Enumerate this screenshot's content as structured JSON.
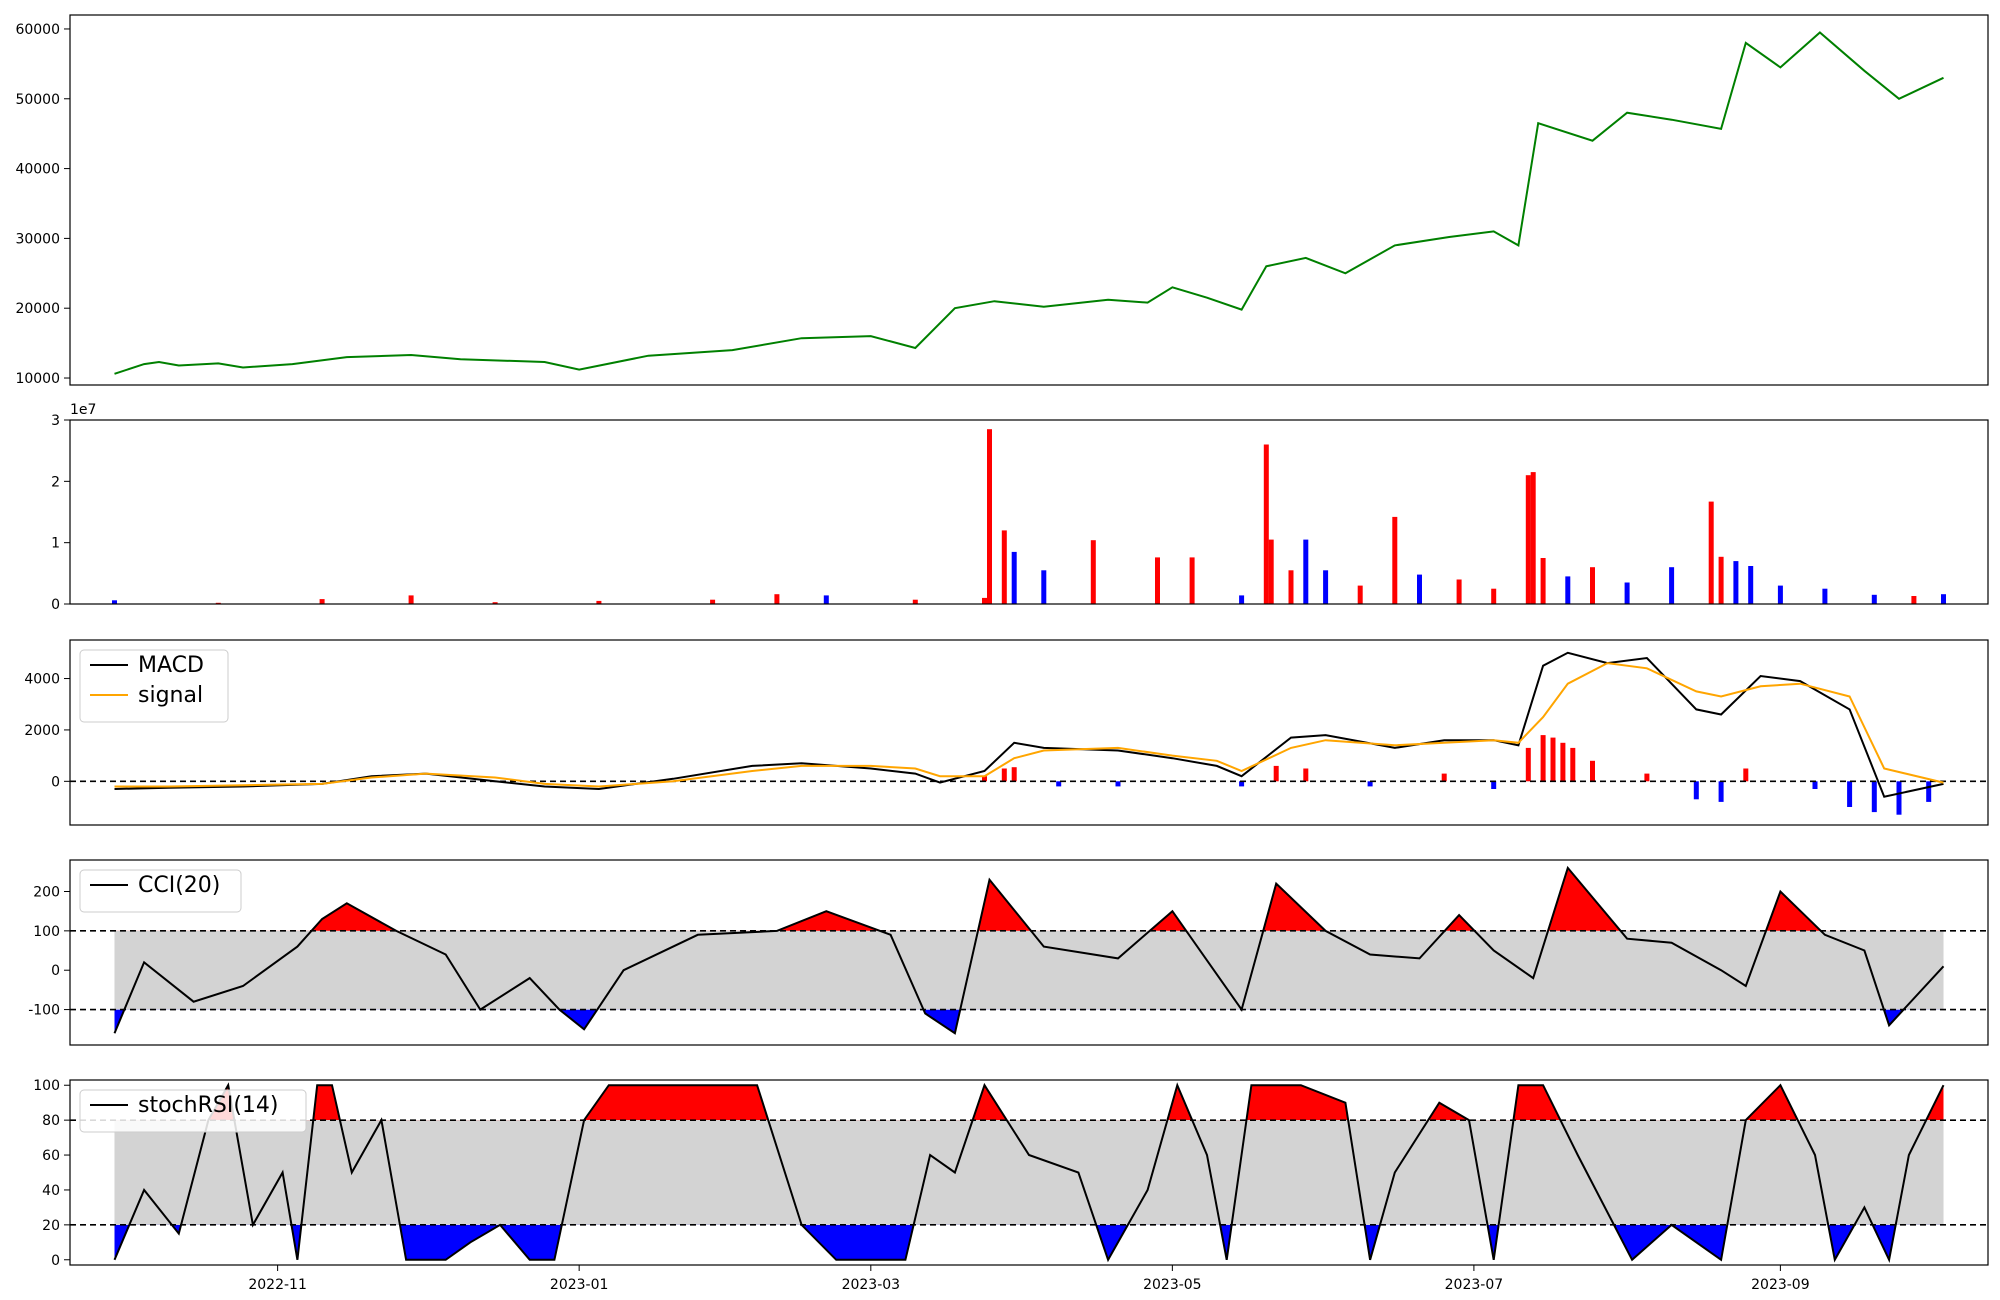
{
  "chart_data": [
    {
      "type": "line",
      "panel": "price",
      "x": [
        "2022-09-29",
        "2022-10-05",
        "2022-10-08",
        "2022-10-12",
        "2022-10-20",
        "2022-10-25",
        "2022-11-04",
        "2022-11-15",
        "2022-11-28",
        "2022-12-08",
        "2022-12-25",
        "2023-01-01",
        "2023-01-15",
        "2023-02-01",
        "2023-02-15",
        "2023-03-01",
        "2023-03-10",
        "2023-03-18",
        "2023-03-26",
        "2023-04-05",
        "2023-04-18",
        "2023-04-26",
        "2023-05-01",
        "2023-05-08",
        "2023-05-15",
        "2023-05-20",
        "2023-05-28",
        "2023-06-05",
        "2023-06-15",
        "2023-06-26",
        "2023-07-05",
        "2023-07-10",
        "2023-07-14",
        "2023-07-25",
        "2023-08-01",
        "2023-08-10",
        "2023-08-20",
        "2023-08-25",
        "2023-09-01",
        "2023-09-09",
        "2023-09-18",
        "2023-09-25",
        "2023-10-04"
      ],
      "values": [
        10600,
        12000,
        12300,
        11800,
        12100,
        11500,
        12000,
        13000,
        13300,
        12700,
        12300,
        11200,
        13200,
        14000,
        15700,
        16000,
        14300,
        20000,
        21000,
        20200,
        21200,
        20800,
        23000,
        21500,
        19800,
        26000,
        27200,
        25000,
        29000,
        30200,
        31000,
        29000,
        46500,
        44000,
        48000,
        47000,
        45700,
        58000,
        54500,
        59500,
        54000,
        50000,
        53000
      ],
      "ylim": [
        9000,
        62000
      ],
      "yticks": [
        10000,
        20000,
        30000,
        40000,
        50000,
        60000
      ],
      "color": "#008000",
      "grid": false
    },
    {
      "type": "bar",
      "panel": "volume",
      "x": [
        "2022-09-29",
        "2022-10-20",
        "2022-11-10",
        "2022-11-28",
        "2022-12-15",
        "2023-01-05",
        "2023-01-28",
        "2023-02-10",
        "2023-02-20",
        "2023-03-10",
        "2023-03-24",
        "2023-03-25",
        "2023-03-28",
        "2023-03-30",
        "2023-04-05",
        "2023-04-15",
        "2023-04-28",
        "2023-05-05",
        "2023-05-15",
        "2023-05-20",
        "2023-05-21",
        "2023-05-25",
        "2023-05-28",
        "2023-06-01",
        "2023-06-08",
        "2023-06-15",
        "2023-06-20",
        "2023-06-28",
        "2023-07-05",
        "2023-07-12",
        "2023-07-13",
        "2023-07-15",
        "2023-07-20",
        "2023-07-25",
        "2023-08-01",
        "2023-08-10",
        "2023-08-18",
        "2023-08-20",
        "2023-08-23",
        "2023-08-26",
        "2023-09-01",
        "2023-09-10",
        "2023-09-20",
        "2023-09-28",
        "2023-10-04"
      ],
      "values": [
        600000,
        200000,
        800000,
        1400000,
        300000,
        500000,
        700000,
        1600000,
        1400000,
        700000,
        1000000,
        28500000,
        12000000,
        8500000,
        5500000,
        10400000,
        7600000,
        7600000,
        1400000,
        26000000,
        10500000,
        5500000,
        10500000,
        5500000,
        3000000,
        14200000,
        4800000,
        4000000,
        2500000,
        21000000,
        21500000,
        7500000,
        4500000,
        6000000,
        3500000,
        6000000,
        16700000,
        7700000,
        7000000,
        6200000,
        3000000,
        2500000,
        1500000,
        1300000,
        1600000
      ],
      "colors": [
        "blue",
        "red",
        "red",
        "red",
        "red",
        "red",
        "red",
        "red",
        "blue",
        "red",
        "red",
        "red",
        "red",
        "blue",
        "blue",
        "red",
        "red",
        "red",
        "blue",
        "red",
        "red",
        "red",
        "blue",
        "blue",
        "red",
        "red",
        "blue",
        "red",
        "red",
        "red",
        "red",
        "red",
        "blue",
        "red",
        "blue",
        "blue",
        "red",
        "red",
        "blue",
        "blue",
        "blue",
        "blue",
        "blue",
        "red",
        "blue"
      ],
      "ylim": [
        0,
        30000000
      ],
      "yticks": [
        0,
        1,
        2,
        3
      ],
      "offset_label": "1e7",
      "grid": false
    },
    {
      "type": "line",
      "panel": "macd",
      "series": [
        {
          "name": "MACD",
          "color": "#000000",
          "x": [
            "2022-09-29",
            "2022-10-10",
            "2022-10-25",
            "2022-11-10",
            "2022-11-20",
            "2022-12-01",
            "2022-12-15",
            "2022-12-25",
            "2023-01-05",
            "2023-01-20",
            "2023-02-05",
            "2023-02-15",
            "2023-03-01",
            "2023-03-10",
            "2023-03-15",
            "2023-03-24",
            "2023-03-30",
            "2023-04-05",
            "2023-04-20",
            "2023-05-01",
            "2023-05-10",
            "2023-05-15",
            "2023-05-25",
            "2023-06-01",
            "2023-06-15",
            "2023-06-25",
            "2023-07-05",
            "2023-07-10",
            "2023-07-15",
            "2023-07-20",
            "2023-07-28",
            "2023-08-05",
            "2023-08-15",
            "2023-08-20",
            "2023-08-28",
            "2023-09-05",
            "2023-09-15",
            "2023-09-22",
            "2023-10-04"
          ],
          "values": [
            -300,
            -250,
            -200,
            -100,
            200,
            300,
            0,
            -200,
            -300,
            100,
            600,
            700,
            500,
            300,
            -50,
            400,
            1500,
            1300,
            1200,
            900,
            600,
            200,
            1700,
            1800,
            1300,
            1600,
            1600,
            1400,
            4500,
            5000,
            4600,
            4800,
            2800,
            2600,
            4100,
            3900,
            2800,
            -600,
            -100
          ]
        },
        {
          "name": "signal",
          "color": "#FFA500",
          "x": [
            "2022-09-29",
            "2022-10-10",
            "2022-10-25",
            "2022-11-10",
            "2022-11-20",
            "2022-12-01",
            "2022-12-15",
            "2022-12-25",
            "2023-01-05",
            "2023-01-20",
            "2023-02-05",
            "2023-02-15",
            "2023-03-01",
            "2023-03-10",
            "2023-03-15",
            "2023-03-24",
            "2023-03-30",
            "2023-04-05",
            "2023-04-20",
            "2023-05-01",
            "2023-05-10",
            "2023-05-15",
            "2023-05-25",
            "2023-06-01",
            "2023-06-15",
            "2023-06-25",
            "2023-07-05",
            "2023-07-10",
            "2023-07-15",
            "2023-07-20",
            "2023-07-28",
            "2023-08-05",
            "2023-08-15",
            "2023-08-20",
            "2023-08-28",
            "2023-09-05",
            "2023-09-15",
            "2023-09-22",
            "2023-10-04"
          ],
          "values": [
            -200,
            -200,
            -150,
            -100,
            150,
            300,
            150,
            -100,
            -200,
            0,
            400,
            600,
            600,
            500,
            200,
            200,
            900,
            1200,
            1300,
            1000,
            800,
            400,
            1300,
            1600,
            1400,
            1500,
            1600,
            1500,
            2500,
            3800,
            4600,
            4400,
            3500,
            3300,
            3700,
            3800,
            3300,
            500,
            -50
          ]
        }
      ],
      "histogram": {
        "x": [
          "2023-03-24",
          "2023-03-28",
          "2023-03-30",
          "2023-04-08",
          "2023-04-20",
          "2023-05-15",
          "2023-05-22",
          "2023-05-28",
          "2023-06-10",
          "2023-06-25",
          "2023-07-05",
          "2023-07-12",
          "2023-07-15",
          "2023-07-17",
          "2023-07-19",
          "2023-07-21",
          "2023-07-25",
          "2023-08-05",
          "2023-08-15",
          "2023-08-20",
          "2023-08-25",
          "2023-09-08",
          "2023-09-15",
          "2023-09-20",
          "2023-09-25",
          "2023-10-01"
        ],
        "values": [
          200,
          500,
          550,
          -200,
          -200,
          -200,
          600,
          500,
          -200,
          300,
          -300,
          1300,
          1800,
          1700,
          1500,
          1300,
          800,
          300,
          -700,
          -800,
          500,
          -300,
          -1000,
          -1200,
          -1300,
          -800
        ],
        "colors": [
          "red",
          "red",
          "red",
          "blue",
          "blue",
          "blue",
          "red",
          "red",
          "blue",
          "red",
          "blue",
          "red",
          "red",
          "red",
          "red",
          "red",
          "red",
          "red",
          "blue",
          "blue",
          "red",
          "blue",
          "blue",
          "blue",
          "blue",
          "blue"
        ]
      },
      "ylim": [
        -1700,
        5500
      ],
      "yticks": [
        0,
        2000,
        4000
      ],
      "hline": 0,
      "legend_placement": "upper-left",
      "grid": false
    },
    {
      "type": "line",
      "panel": "cci",
      "series": [
        {
          "name": "CCI(20)",
          "color": "#000000",
          "x": [
            "2022-09-29",
            "2022-10-05",
            "2022-10-15",
            "2022-10-25",
            "2022-11-05",
            "2022-11-10",
            "2022-11-15",
            "2022-11-25",
            "2022-12-05",
            "2022-12-12",
            "2022-12-22",
            "2022-12-28",
            "2023-01-02",
            "2023-01-10",
            "2023-01-25",
            "2023-02-10",
            "2023-02-20",
            "2023-03-05",
            "2023-03-12",
            "2023-03-18",
            "2023-03-25",
            "2023-04-05",
            "2023-04-20",
            "2023-05-01",
            "2023-05-15",
            "2023-05-22",
            "2023-06-01",
            "2023-06-10",
            "2023-06-20",
            "2023-06-28",
            "2023-07-05",
            "2023-07-13",
            "2023-07-20",
            "2023-08-01",
            "2023-08-10",
            "2023-08-20",
            "2023-08-25",
            "2023-09-01",
            "2023-09-10",
            "2023-09-18",
            "2023-09-23",
            "2023-10-04"
          ],
          "values": [
            -160,
            20,
            -80,
            -40,
            60,
            130,
            170,
            100,
            40,
            -100,
            -20,
            -100,
            -150,
            0,
            90,
            100,
            150,
            90,
            -110,
            -160,
            230,
            60,
            30,
            150,
            -100,
            220,
            100,
            40,
            30,
            140,
            50,
            -20,
            260,
            80,
            70,
            0,
            -40,
            200,
            90,
            50,
            -140,
            10
          ]
        }
      ],
      "ylim": [
        -190,
        280
      ],
      "yticks": [
        -100,
        0,
        100,
        200
      ],
      "hlines": [
        100,
        -100
      ],
      "band": [
        -100,
        100
      ],
      "fill_above_color": "red",
      "fill_below_color": "blue",
      "legend_placement": "upper-left",
      "grid": false
    },
    {
      "type": "line",
      "panel": "stochrsi",
      "series": [
        {
          "name": "stochRSI(14)",
          "color": "#000000",
          "x": [
            "2022-09-29",
            "2022-10-05",
            "2022-10-12",
            "2022-10-18",
            "2022-10-22",
            "2022-10-27",
            "2022-11-02",
            "2022-11-05",
            "2022-11-09",
            "2022-11-12",
            "2022-11-16",
            "2022-11-22",
            "2022-11-27",
            "2022-12-01",
            "2022-12-05",
            "2022-12-10",
            "2022-12-16",
            "2022-12-22",
            "2022-12-27",
            "2023-01-02",
            "2023-01-07",
            "2023-01-12",
            "2023-01-22",
            "2023-02-06",
            "2023-02-15",
            "2023-02-22",
            "2023-03-01",
            "2023-03-08",
            "2023-03-13",
            "2023-03-18",
            "2023-03-24",
            "2023-04-02",
            "2023-04-12",
            "2023-04-18",
            "2023-04-26",
            "2023-05-02",
            "2023-05-08",
            "2023-05-12",
            "2023-05-17",
            "2023-05-22",
            "2023-05-27",
            "2023-06-05",
            "2023-06-10",
            "2023-06-15",
            "2023-06-24",
            "2023-06-30",
            "2023-07-05",
            "2023-07-10",
            "2023-07-15",
            "2023-07-22",
            "2023-08-02",
            "2023-08-10",
            "2023-08-20",
            "2023-08-25",
            "2023-09-01",
            "2023-09-08",
            "2023-09-12",
            "2023-09-18",
            "2023-09-23",
            "2023-09-27",
            "2023-10-04"
          ],
          "values": [
            0,
            40,
            15,
            80,
            100,
            20,
            50,
            0,
            100,
            100,
            50,
            80,
            0,
            0,
            0,
            10,
            20,
            0,
            0,
            80,
            100,
            100,
            100,
            100,
            20,
            0,
            0,
            0,
            60,
            50,
            100,
            60,
            50,
            0,
            40,
            100,
            60,
            0,
            100,
            100,
            100,
            90,
            0,
            50,
            90,
            80,
            0,
            100,
            100,
            60,
            0,
            20,
            0,
            80,
            100,
            60,
            0,
            30,
            0,
            60,
            100
          ],
          "colors_note": "filled red above 80, blue below 20"
        }
      ],
      "ylim": [
        -3,
        103
      ],
      "yticks": [
        0,
        20,
        40,
        60,
        80,
        100
      ],
      "hlines": [
        80,
        20
      ],
      "band": [
        20,
        80
      ],
      "fill_above_color": "red",
      "fill_below_color": "blue",
      "legend_placement": "upper-left",
      "grid": false
    }
  ],
  "xaxis": {
    "range": [
      "2022-09-20",
      "2023-10-13"
    ],
    "ticks": [
      "2022-11-01",
      "2023-01-01",
      "2023-03-01",
      "2023-05-01",
      "2023-07-01",
      "2023-09-01"
    ],
    "tick_labels": [
      "2022-11",
      "2023-01",
      "2023-03",
      "2023-05",
      "2023-07",
      "2023-09"
    ]
  }
}
